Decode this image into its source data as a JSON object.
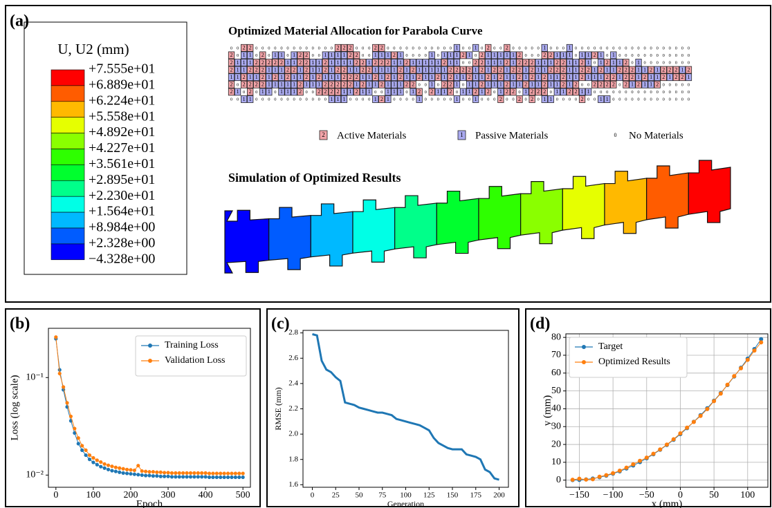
{
  "panel_a": {
    "label": "(a)",
    "colorbar": {
      "title": "U, U2 (mm)",
      "labels": [
        "+7.555e+01",
        "+6.889e+01",
        "+6.224e+01",
        "+5.558e+01",
        "+4.892e+01",
        "+4.227e+01",
        "+3.561e+01",
        "+2.895e+01",
        "+2.230e+01",
        "+1.564e+01",
        "+8.984e+00",
        "+2.328e+00",
        "−4.328e+00"
      ],
      "colors": [
        "#ff0000",
        "#ff5c00",
        "#ffb900",
        "#e6ff00",
        "#8aff00",
        "#2eff00",
        "#00ff2e",
        "#00ff8a",
        "#00ffe6",
        "#00b9ff",
        "#005cff",
        "#0000ff"
      ]
    },
    "grid_title": "Optimized Material Allocation for Parabola Curve",
    "grid": [
      "00220000000000000222000220000000000010010200200000100010000000000000000000",
      "20110201101220011112200111210000101112102111112000221110112101000000000000",
      "21112222211221121111221222112111112110022111212221112211210121120100000000",
      "21122211122121121221122111121211111222212122122121122211221211222112122212",
      "11211212121121211122211212121121121211211212112121211211211122122121121221",
      "20222211111211122222121121112200102210112111211211211212002222021211200000",
      "21020110111200222211211001110120211201121201220122201122110000000000000000",
      "00110000000000001110000121000010000010010002002020110000200110000000000000"
    ],
    "cell_colors": {
      "2": "#f2a3a8",
      "1": "#aaaaf0"
    },
    "legend": [
      {
        "symbol": "2",
        "label": "Active Materials"
      },
      {
        "symbol": "1",
        "label": "Passive Materials"
      },
      {
        "symbol": "0",
        "label": "No Materials"
      }
    ],
    "sim_title": "Simulation of Optimized Results"
  },
  "chart_data": [
    {
      "type": "line",
      "panel_label": "(b)",
      "xlabel": "Epoch",
      "ylabel": "Loss (log scale)",
      "log_y": true,
      "markers": true,
      "legend": "upper right",
      "x": [
        0,
        10,
        20,
        30,
        40,
        50,
        60,
        70,
        80,
        90,
        100,
        110,
        120,
        130,
        140,
        150,
        160,
        170,
        180,
        190,
        200,
        210,
        220,
        230,
        240,
        250,
        260,
        270,
        280,
        290,
        300,
        310,
        320,
        330,
        340,
        350,
        360,
        370,
        380,
        390,
        400,
        410,
        420,
        430,
        440,
        450,
        460,
        470,
        480,
        490,
        500
      ],
      "series": [
        {
          "name": "Training Loss",
          "color": "#1f77b4",
          "values": [
            0.25,
            0.12,
            0.075,
            0.05,
            0.036,
            0.027,
            0.021,
            0.018,
            0.016,
            0.0145,
            0.0135,
            0.0128,
            0.0122,
            0.0118,
            0.0114,
            0.0111,
            0.0109,
            0.0107,
            0.0105,
            0.0104,
            0.0103,
            0.0102,
            0.0101,
            0.01,
            0.0099,
            0.0099,
            0.0098,
            0.0098,
            0.0097,
            0.0097,
            0.0097,
            0.0096,
            0.0096,
            0.0096,
            0.0096,
            0.0096,
            0.0096,
            0.0096,
            0.0096,
            0.0096,
            0.0096,
            0.0095,
            0.0095,
            0.0095,
            0.0095,
            0.0095,
            0.0095,
            0.0095,
            0.0095,
            0.0095,
            0.0095
          ]
        },
        {
          "name": "Validation Loss",
          "color": "#ff7f0e",
          "values": [
            0.26,
            0.11,
            0.08,
            0.055,
            0.04,
            0.03,
            0.024,
            0.02,
            0.018,
            0.016,
            0.015,
            0.0142,
            0.0136,
            0.013,
            0.0126,
            0.0123,
            0.012,
            0.0118,
            0.0116,
            0.0114,
            0.0113,
            0.0112,
            0.0125,
            0.011,
            0.0109,
            0.0108,
            0.0108,
            0.0107,
            0.0107,
            0.0106,
            0.0106,
            0.0105,
            0.0105,
            0.0105,
            0.0105,
            0.0105,
            0.0105,
            0.0105,
            0.0105,
            0.0105,
            0.0105,
            0.0104,
            0.0104,
            0.0104,
            0.0104,
            0.0104,
            0.0104,
            0.0104,
            0.0104,
            0.0104,
            0.0104
          ]
        }
      ],
      "xlim": [
        -20,
        520
      ],
      "xticks": [
        0,
        100,
        200,
        300,
        400,
        500
      ],
      "ylim": [
        0.0075,
        0.32
      ],
      "yticks": [
        {
          "value": 0.01,
          "label": "10⁻²"
        },
        {
          "value": 0.1,
          "label": "10⁻¹"
        }
      ]
    },
    {
      "type": "line",
      "panel_label": "(c)",
      "xlabel": "Generation",
      "ylabel": "RMSE (mm)",
      "markers": false,
      "x": [
        0,
        5,
        10,
        15,
        20,
        25,
        30,
        35,
        40,
        45,
        50,
        55,
        60,
        65,
        70,
        75,
        80,
        85,
        90,
        95,
        100,
        105,
        110,
        115,
        120,
        125,
        130,
        135,
        140,
        145,
        150,
        155,
        160,
        165,
        170,
        175,
        180,
        185,
        190,
        195,
        200
      ],
      "series": [
        {
          "color": "#1f77b4",
          "values": [
            2.79,
            2.78,
            2.58,
            2.51,
            2.49,
            2.45,
            2.42,
            2.25,
            2.24,
            2.23,
            2.21,
            2.2,
            2.19,
            2.18,
            2.17,
            2.17,
            2.16,
            2.15,
            2.12,
            2.11,
            2.1,
            2.09,
            2.08,
            2.07,
            2.05,
            2.03,
            1.97,
            1.93,
            1.91,
            1.89,
            1.88,
            1.88,
            1.88,
            1.84,
            1.83,
            1.82,
            1.8,
            1.72,
            1.7,
            1.65,
            1.64
          ]
        }
      ],
      "xlim": [
        -10,
        210
      ],
      "xticks": [
        0,
        25,
        50,
        75,
        100,
        125,
        150,
        175,
        200
      ],
      "ylim": [
        1.58,
        2.82
      ],
      "yticks": [
        1.6,
        1.8,
        {
          "value": 2,
          "label": "2.0"
        },
        2.2,
        2.4,
        2.6,
        2.8
      ]
    },
    {
      "type": "line",
      "panel_label": "(d)",
      "xlabel": "x (mm)",
      "ylabel": "y (mm)",
      "markers": true,
      "grid": true,
      "legend": "upper left",
      "x": [
        -160,
        -150,
        -140,
        -130,
        -120,
        -110,
        -100,
        -90,
        -80,
        -70,
        -60,
        -50,
        -40,
        -30,
        -20,
        -10,
        0,
        10,
        20,
        30,
        40,
        50,
        60,
        70,
        80,
        90,
        100,
        110,
        120
      ],
      "series": [
        {
          "name": "Target",
          "color": "#1f77b4",
          "values": [
            0,
            0.1,
            0.4,
            0.9,
            1.6,
            2.5,
            3.6,
            4.9,
            6.5,
            8.2,
            10.1,
            12.2,
            14.5,
            17.0,
            19.7,
            22.6,
            25.8,
            29.1,
            32.7,
            36.4,
            40.3,
            44.5,
            48.8,
            53.3,
            58.1,
            63.0,
            68.1,
            73.5,
            79.0
          ]
        },
        {
          "name": "Optimized Results",
          "color": "#ff7f0e",
          "values": [
            0.2,
            0.8,
            0.3,
            0.5,
            1.9,
            2.8,
            3.9,
            5.3,
            7.0,
            8.9,
            10.8,
            12.6,
            14.8,
            17.2,
            19.9,
            22.9,
            26.2,
            29.4,
            32.6,
            36.0,
            39.8,
            44.3,
            48.5,
            53.5,
            58.3,
            62.7,
            67.4,
            72.6,
            77.2
          ]
        }
      ],
      "xlim": [
        -170,
        130
      ],
      "xticks": [
        {
          "value": -150,
          "label": "−150"
        },
        {
          "value": -100,
          "label": "−100"
        },
        {
          "value": -50,
          "label": "−50"
        },
        0,
        50,
        100
      ],
      "ylim": [
        -4,
        82
      ],
      "yticks": [
        0,
        10,
        20,
        30,
        40,
        50,
        60,
        70,
        80
      ]
    }
  ]
}
